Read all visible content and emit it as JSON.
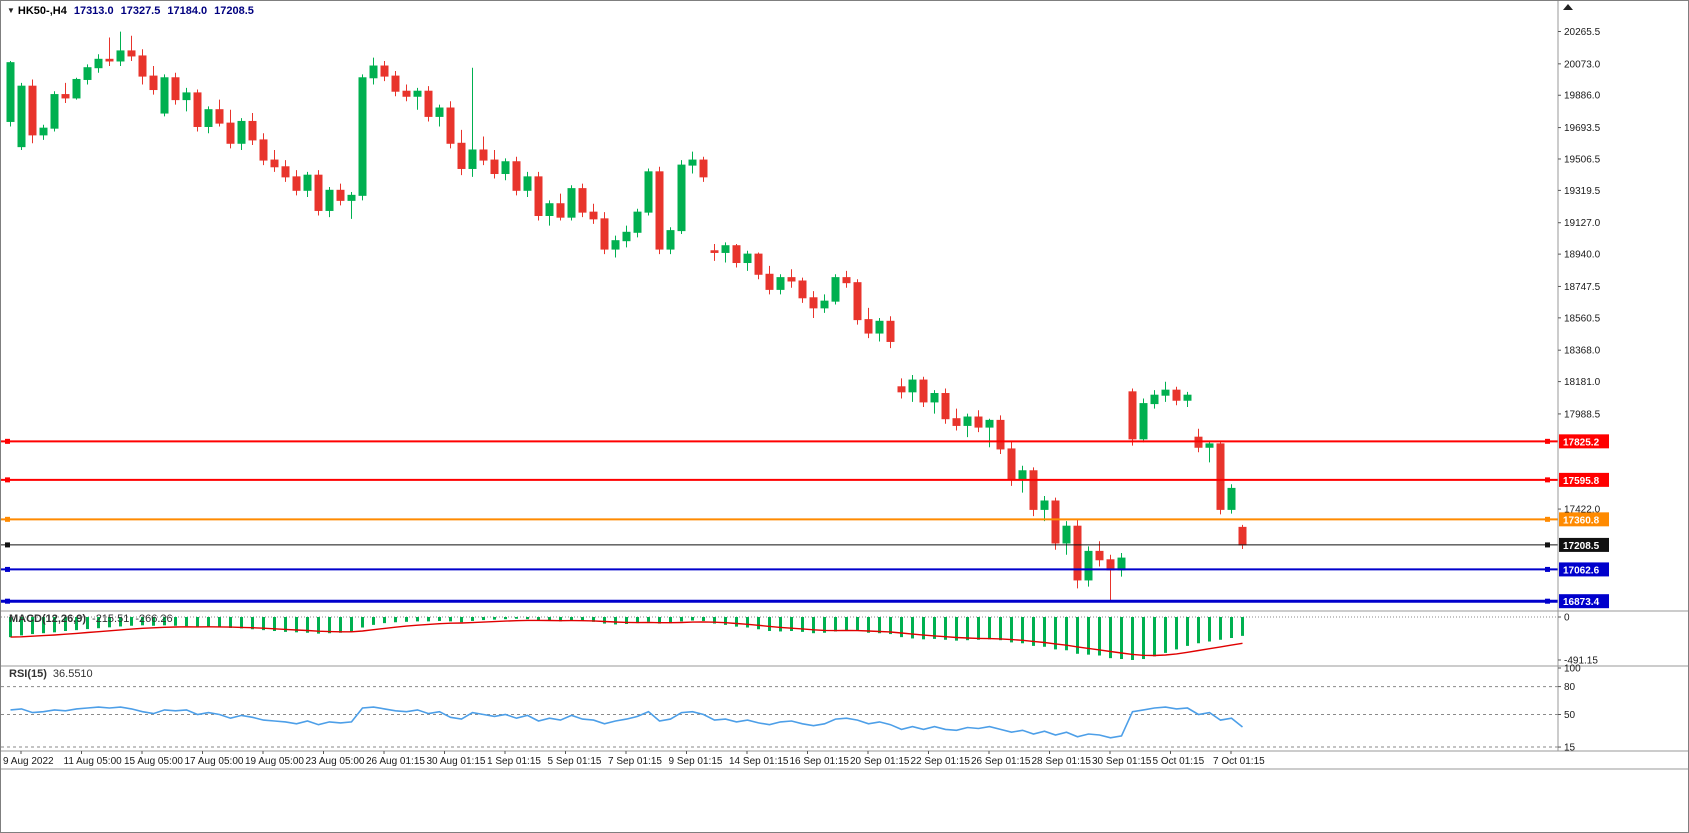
{
  "header": {
    "symbol": "HK50-,H4",
    "open": "17313.0",
    "high": "17327.5",
    "low": "17184.0",
    "close": "17208.5"
  },
  "icons": {
    "symbol_dropdown": "▼"
  },
  "colors": {
    "candle_up": "#00b050",
    "candle_down": "#e8342c",
    "macd_hist": "#00b050",
    "macd_signal": "#e00000",
    "rsi_line": "#4d9fe8",
    "axis_text": "#1a1a1a",
    "separator": "#9a9a9a",
    "level_dash": "#8a8a8a",
    "badge_text": "#ffffff"
  },
  "chart_data": {
    "type": "candlestick",
    "symbol": "HK50-,H4",
    "timeframe": "H4",
    "title": "HK50- H4 candlestick chart with MACD and RSI",
    "ohlc_current": {
      "open": 17313.0,
      "high": 17327.5,
      "low": 17184.0,
      "close": 17208.5
    },
    "price_axis_ticks": [
      {
        "price": 20265.5,
        "label": "20265.5"
      },
      {
        "price": 20073.0,
        "label": "20073.0"
      },
      {
        "price": 19886.0,
        "label": "19886.0"
      },
      {
        "price": 19693.5,
        "label": "19693.5"
      },
      {
        "price": 19506.5,
        "label": "19506.5"
      },
      {
        "price": 19319.5,
        "label": "19319.5"
      },
      {
        "price": 19127.0,
        "label": "19127.0"
      },
      {
        "price": 18940.0,
        "label": "18940.0"
      },
      {
        "price": 18747.5,
        "label": "18747.5"
      },
      {
        "price": 18560.5,
        "label": "18560.5"
      },
      {
        "price": 18368.0,
        "label": "18368.0"
      },
      {
        "price": 18181.0,
        "label": "18181.0"
      },
      {
        "price": 17988.5,
        "label": "17988.5"
      },
      {
        "price": 17422.0,
        "label": "17422.0"
      }
    ],
    "hlines": [
      {
        "price": 17825.2,
        "label": "17825.2",
        "color": "#ff0000",
        "width": 2
      },
      {
        "price": 17595.8,
        "label": "17595.8",
        "color": "#ff0000",
        "width": 2
      },
      {
        "price": 17360.8,
        "label": "17360.8",
        "color": "#ff8a00",
        "width": 2
      },
      {
        "price": 17208.5,
        "label": "17208.5",
        "color": "#111111",
        "width": 1
      },
      {
        "price": 17062.6,
        "label": "17062.6",
        "color": "#0000cc",
        "width": 2
      },
      {
        "price": 16873.4,
        "label": "16873.4",
        "color": "#0000cc",
        "width": 3
      }
    ],
    "x_labels": [
      "9 Aug 2022",
      "11 Aug 05:00",
      "15 Aug 05:00",
      "17 Aug 05:00",
      "19 Aug 05:00",
      "23 Aug 05:00",
      "26 Aug 01:15",
      "30 Aug 01:15",
      "1 Sep 01:15",
      "5 Sep 01:15",
      "7 Sep 01:15",
      "9 Sep 01:15",
      "14 Sep 01:15",
      "16 Sep 01:15",
      "20 Sep 01:15",
      "22 Sep 01:15",
      "26 Sep 01:15",
      "28 Sep 01:15",
      "30 Sep 01:15",
      "5 Oct 01:15",
      "7 Oct 01:15"
    ],
    "candles": [
      [
        19730,
        20090,
        19700,
        20080
      ],
      [
        19580,
        19960,
        19560,
        19940
      ],
      [
        19940,
        19980,
        19600,
        19650
      ],
      [
        19650,
        19710,
        19620,
        19690
      ],
      [
        19690,
        19910,
        19670,
        19890
      ],
      [
        19890,
        19960,
        19840,
        19870
      ],
      [
        19870,
        19990,
        19860,
        19980
      ],
      [
        19980,
        20070,
        19950,
        20050
      ],
      [
        20050,
        20130,
        20020,
        20100
      ],
      [
        20100,
        20230,
        20060,
        20090
      ],
      [
        20090,
        20265,
        20060,
        20150
      ],
      [
        20150,
        20240,
        20090,
        20120
      ],
      [
        20120,
        20160,
        19950,
        20000
      ],
      [
        20000,
        20060,
        19890,
        19920
      ],
      [
        19780,
        20010,
        19760,
        19990
      ],
      [
        19990,
        20020,
        19830,
        19860
      ],
      [
        19860,
        19930,
        19790,
        19900
      ],
      [
        19900,
        19920,
        19670,
        19700
      ],
      [
        19700,
        19820,
        19660,
        19800
      ],
      [
        19800,
        19860,
        19700,
        19720
      ],
      [
        19720,
        19800,
        19570,
        19600
      ],
      [
        19600,
        19750,
        19560,
        19730
      ],
      [
        19730,
        19780,
        19590,
        19620
      ],
      [
        19620,
        19660,
        19470,
        19500
      ],
      [
        19500,
        19560,
        19430,
        19460
      ],
      [
        19460,
        19500,
        19370,
        19400
      ],
      [
        19400,
        19440,
        19290,
        19320
      ],
      [
        19320,
        19430,
        19280,
        19410
      ],
      [
        19410,
        19440,
        19170,
        19200
      ],
      [
        19200,
        19340,
        19160,
        19320
      ],
      [
        19320,
        19360,
        19230,
        19260
      ],
      [
        19260,
        19310,
        19150,
        19290
      ],
      [
        19290,
        20010,
        19260,
        19990
      ],
      [
        19990,
        20110,
        19950,
        20060
      ],
      [
        20060,
        20090,
        19970,
        20000
      ],
      [
        20000,
        20030,
        19880,
        19910
      ],
      [
        19910,
        19950,
        19850,
        19880
      ],
      [
        19880,
        19930,
        19800,
        19910
      ],
      [
        19910,
        19940,
        19730,
        19760
      ],
      [
        19760,
        19830,
        19700,
        19810
      ],
      [
        19810,
        19850,
        19570,
        19600
      ],
      [
        19600,
        19680,
        19410,
        19450
      ],
      [
        19450,
        20050,
        19400,
        19560
      ],
      [
        19560,
        19640,
        19470,
        19500
      ],
      [
        19500,
        19560,
        19390,
        19420
      ],
      [
        19420,
        19510,
        19380,
        19490
      ],
      [
        19490,
        19520,
        19290,
        19320
      ],
      [
        19320,
        19430,
        19280,
        19400
      ],
      [
        19400,
        19430,
        19140,
        19170
      ],
      [
        19170,
        19260,
        19110,
        19240
      ],
      [
        19240,
        19300,
        19140,
        19160
      ],
      [
        19160,
        19350,
        19140,
        19330
      ],
      [
        19330,
        19360,
        19160,
        19190
      ],
      [
        19190,
        19240,
        19120,
        19150
      ],
      [
        19150,
        19190,
        18940,
        18970
      ],
      [
        18970,
        19050,
        18920,
        19020
      ],
      [
        19020,
        19110,
        18980,
        19070
      ],
      [
        19070,
        19210,
        19040,
        19190
      ],
      [
        19190,
        19450,
        19170,
        19430
      ],
      [
        19430,
        19460,
        18940,
        18970
      ],
      [
        18970,
        19100,
        18940,
        19080
      ],
      [
        19080,
        19500,
        19060,
        19470
      ],
      [
        19470,
        19550,
        19420,
        19500
      ],
      [
        19500,
        19520,
        19370,
        19400
      ],
      [
        18960,
        19000,
        18900,
        18950
      ],
      [
        18950,
        19010,
        18890,
        18990
      ],
      [
        18990,
        19000,
        18860,
        18890
      ],
      [
        18890,
        18960,
        18840,
        18940
      ],
      [
        18940,
        18950,
        18790,
        18820
      ],
      [
        18820,
        18870,
        18700,
        18730
      ],
      [
        18730,
        18820,
        18700,
        18800
      ],
      [
        18800,
        18850,
        18740,
        18780
      ],
      [
        18780,
        18800,
        18650,
        18680
      ],
      [
        18680,
        18720,
        18560,
        18620
      ],
      [
        18620,
        18700,
        18590,
        18660
      ],
      [
        18660,
        18820,
        18640,
        18800
      ],
      [
        18800,
        18840,
        18740,
        18770
      ],
      [
        18770,
        18790,
        18520,
        18550
      ],
      [
        18550,
        18620,
        18440,
        18470
      ],
      [
        18470,
        18560,
        18420,
        18540
      ],
      [
        18540,
        18570,
        18380,
        18420
      ],
      [
        18150,
        18200,
        18080,
        18120
      ],
      [
        18120,
        18220,
        18060,
        18190
      ],
      [
        18190,
        18210,
        18030,
        18060
      ],
      [
        18060,
        18130,
        17990,
        18110
      ],
      [
        18110,
        18140,
        17930,
        17960
      ],
      [
        17960,
        18020,
        17890,
        17920
      ],
      [
        17920,
        17990,
        17850,
        17970
      ],
      [
        17970,
        18010,
        17880,
        17910
      ],
      [
        17910,
        17960,
        17790,
        17950
      ],
      [
        17950,
        17980,
        17750,
        17780
      ],
      [
        17780,
        17830,
        17560,
        17600
      ],
      [
        17600,
        17680,
        17520,
        17650
      ],
      [
        17650,
        17670,
        17380,
        17420
      ],
      [
        17420,
        17500,
        17350,
        17470
      ],
      [
        17470,
        17490,
        17180,
        17220
      ],
      [
        17220,
        17350,
        17150,
        17320
      ],
      [
        17320,
        17360,
        16950,
        17000
      ],
      [
        17000,
        17200,
        16960,
        17170
      ],
      [
        17170,
        17230,
        17080,
        17120
      ],
      [
        17120,
        17150,
        16880,
        17060
      ],
      [
        17060,
        17160,
        17020,
        17130
      ],
      [
        18120,
        18140,
        17800,
        17840
      ],
      [
        17840,
        18080,
        17820,
        18050
      ],
      [
        18050,
        18130,
        18020,
        18100
      ],
      [
        18100,
        18180,
        18060,
        18130
      ],
      [
        18130,
        18150,
        18040,
        18070
      ],
      [
        18070,
        18120,
        18030,
        18100
      ],
      [
        17850,
        17900,
        17760,
        17790
      ],
      [
        17790,
        17830,
        17700,
        17810
      ],
      [
        17810,
        17820,
        17390,
        17420
      ],
      [
        17420,
        17570,
        17395,
        17545
      ],
      [
        17313,
        17327.5,
        17184,
        17208.5
      ]
    ],
    "macd": {
      "label": "MACD(12,26,9)",
      "value_text": "-215.51",
      "signal_text": "-266.26",
      "value": -215.51,
      "signal_value": -266.26,
      "axis_labels": [
        "0",
        "-491.15"
      ],
      "axis_values": [
        0,
        -491.15
      ],
      "histogram": [
        -230,
        -210,
        -195,
        -185,
        -175,
        -160,
        -150,
        -138,
        -128,
        -118,
        -108,
        -100,
        -95,
        -100,
        -95,
        -100,
        -105,
        -115,
        -110,
        -115,
        -125,
        -130,
        -140,
        -150,
        -160,
        -170,
        -175,
        -180,
        -190,
        -185,
        -180,
        -170,
        -120,
        -90,
        -70,
        -60,
        -55,
        -50,
        -50,
        -45,
        -50,
        -60,
        -45,
        -35,
        -30,
        -25,
        -20,
        -25,
        -40,
        -45,
        -50,
        -40,
        -45,
        -55,
        -75,
        -85,
        -80,
        -70,
        -55,
        -75,
        -70,
        -50,
        -40,
        -45,
        -75,
        -90,
        -110,
        -120,
        -140,
        -160,
        -165,
        -160,
        -170,
        -185,
        -180,
        -165,
        -150,
        -160,
        -180,
        -185,
        -195,
        -230,
        -245,
        -255,
        -250,
        -260,
        -270,
        -265,
        -260,
        -255,
        -265,
        -290,
        -300,
        -330,
        -340,
        -370,
        -380,
        -420,
        -430,
        -440,
        -470,
        -480,
        -491,
        -480,
        -450,
        -410,
        -370,
        -330,
        -300,
        -280,
        -260,
        -240,
        -215.5
      ]
    },
    "rsi": {
      "label": "RSI(15)",
      "value_text": "36.5510",
      "value": 36.551,
      "axis_labels": [
        "100",
        "80",
        "50",
        "15"
      ],
      "axis_values": [
        100,
        80,
        50,
        15
      ],
      "level_lines": [
        80,
        50,
        15
      ],
      "values": [
        55,
        56,
        52,
        53,
        55,
        54,
        56,
        57,
        58,
        57,
        58,
        56,
        53,
        51,
        55,
        54,
        55,
        50,
        52,
        50,
        46,
        49,
        47,
        44,
        43,
        42,
        40,
        43,
        39,
        42,
        41,
        42,
        57,
        58,
        56,
        54,
        53,
        55,
        51,
        53,
        47,
        45,
        52,
        50,
        48,
        50,
        46,
        49,
        43,
        46,
        44,
        49,
        45,
        44,
        40,
        43,
        45,
        48,
        53,
        43,
        45,
        52,
        53,
        50,
        44,
        45,
        42,
        44,
        41,
        39,
        42,
        43,
        40,
        38,
        40,
        45,
        46,
        44,
        40,
        42,
        39,
        34,
        37,
        34,
        37,
        34,
        33,
        36,
        35,
        37,
        34,
        31,
        33,
        29,
        32,
        28,
        31,
        26,
        29,
        28,
        25,
        27,
        53,
        55,
        57,
        58,
        56,
        57,
        50,
        52,
        44,
        46,
        36.55
      ]
    }
  }
}
